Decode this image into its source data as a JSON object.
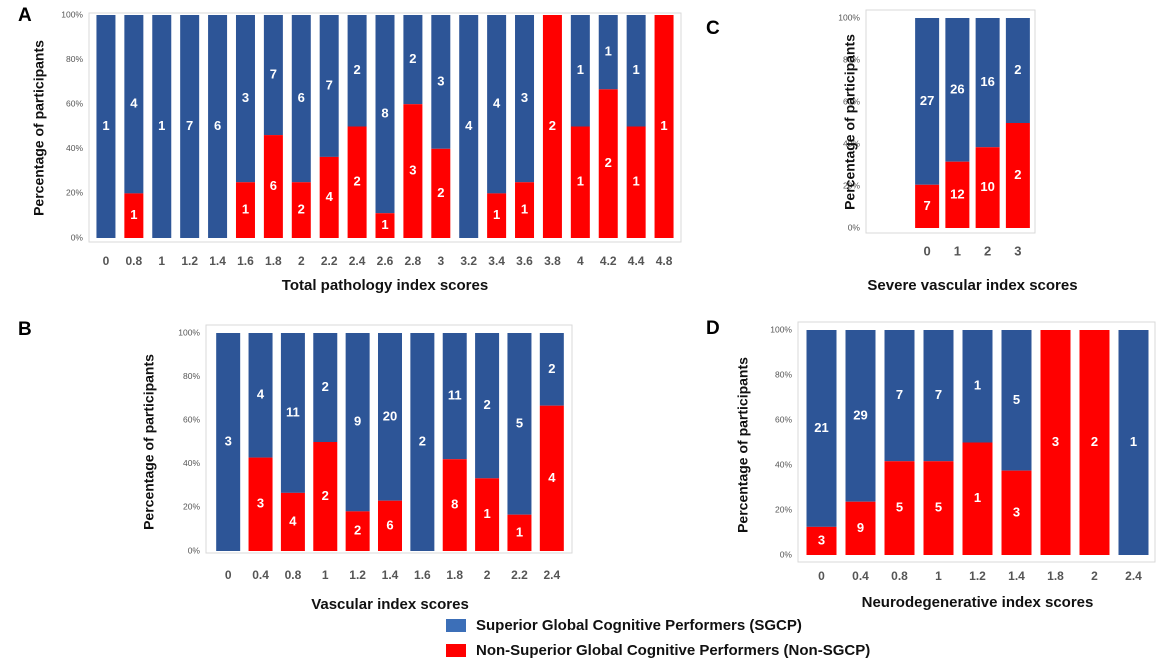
{
  "colors": {
    "sgcp": "#2d5597",
    "non_sgcp": "#ff0000",
    "frame": "#d9d9d9",
    "text": "#111111",
    "tick": "#555555"
  },
  "legend": [
    {
      "label": "Superior Global Cognitive Performers (SGCP)",
      "color": "#3c6fb8"
    },
    {
      "label": "Non-Superior Global Cognitive Performers (Non-SGCP)",
      "color": "#ff0000"
    }
  ],
  "chart_data": [
    {
      "panel": "A",
      "type": "bar",
      "stacked": true,
      "percent": true,
      "xlabel": "Total pathology index scores",
      "ylabel": "Percentage of participants",
      "ylim": [
        0,
        100
      ],
      "yticks": [
        "0%",
        "20%",
        "40%",
        "60%",
        "80%",
        "100%"
      ],
      "categories": [
        "0",
        "0.8",
        "1",
        "1.2",
        "1.4",
        "1.6",
        "1.8",
        "2",
        "2.2",
        "2.4",
        "2.6",
        "2.8",
        "3",
        "3.2",
        "3.4",
        "3.6",
        "3.8",
        "4",
        "4.2",
        "4.4",
        "4.8"
      ],
      "series": [
        {
          "name": "Non-Superior Global Cognitive Performers (Non-SGCP)",
          "values": [
            0,
            1,
            0,
            0,
            0,
            1,
            6,
            2,
            4,
            2,
            1,
            3,
            2,
            0,
            1,
            1,
            2,
            1,
            2,
            1,
            1
          ]
        },
        {
          "name": "Superior Global Cognitive Performers (SGCP)",
          "values": [
            1,
            4,
            1,
            7,
            6,
            3,
            7,
            6,
            7,
            2,
            8,
            2,
            3,
            4,
            4,
            3,
            0,
            1,
            1,
            1,
            0
          ]
        }
      ]
    },
    {
      "panel": "B",
      "type": "bar",
      "stacked": true,
      "percent": true,
      "xlabel": "Vascular index scores",
      "ylabel": "Percentage of participants",
      "ylim": [
        0,
        100
      ],
      "yticks": [
        "0%",
        "20%",
        "40%",
        "60%",
        "80%",
        "100%"
      ],
      "categories": [
        "0",
        "0.4",
        "0.8",
        "1",
        "1.2",
        "1.4",
        "1.6",
        "1.8",
        "2",
        "2.2",
        "2.4"
      ],
      "series": [
        {
          "name": "Non-Superior Global Cognitive Performers (Non-SGCP)",
          "values": [
            0,
            3,
            4,
            2,
            2,
            6,
            0,
            8,
            1,
            1,
            4
          ]
        },
        {
          "name": "Superior Global Cognitive Performers (SGCP)",
          "values": [
            3,
            4,
            11,
            2,
            9,
            20,
            2,
            11,
            2,
            5,
            2
          ]
        }
      ]
    },
    {
      "panel": "C",
      "type": "bar",
      "stacked": true,
      "percent": true,
      "xlabel": "Severe vascular index scores",
      "ylabel": "Percentage of participants",
      "ylim": [
        0,
        100
      ],
      "yticks": [
        "0%",
        "20%",
        "40%",
        "60%",
        "80%",
        "100%"
      ],
      "categories": [
        "0",
        "1",
        "2",
        "3"
      ],
      "series": [
        {
          "name": "Non-Superior Global Cognitive Performers (Non-SGCP)",
          "values": [
            7,
            12,
            10,
            2
          ]
        },
        {
          "name": "Superior Global Cognitive Performers (SGCP)",
          "values": [
            27,
            26,
            16,
            2
          ]
        }
      ]
    },
    {
      "panel": "D",
      "type": "bar",
      "stacked": true,
      "percent": true,
      "xlabel": "Neurodegenerative index scores",
      "ylabel": "Percentage of participants",
      "ylim": [
        0,
        100
      ],
      "yticks": [
        "0%",
        "20%",
        "40%",
        "60%",
        "80%",
        "100%"
      ],
      "categories": [
        "0",
        "0.4",
        "0.8",
        "1",
        "1.2",
        "1.4",
        "1.8",
        "2",
        "2.4"
      ],
      "series": [
        {
          "name": "Non-Superior Global Cognitive Performers (Non-SGCP)",
          "values": [
            3,
            9,
            5,
            5,
            1,
            3,
            3,
            2,
            0
          ]
        },
        {
          "name": "Superior Global Cognitive Performers (SGCP)",
          "values": [
            21,
            29,
            7,
            7,
            1,
            5,
            0,
            0,
            1
          ]
        }
      ]
    }
  ]
}
